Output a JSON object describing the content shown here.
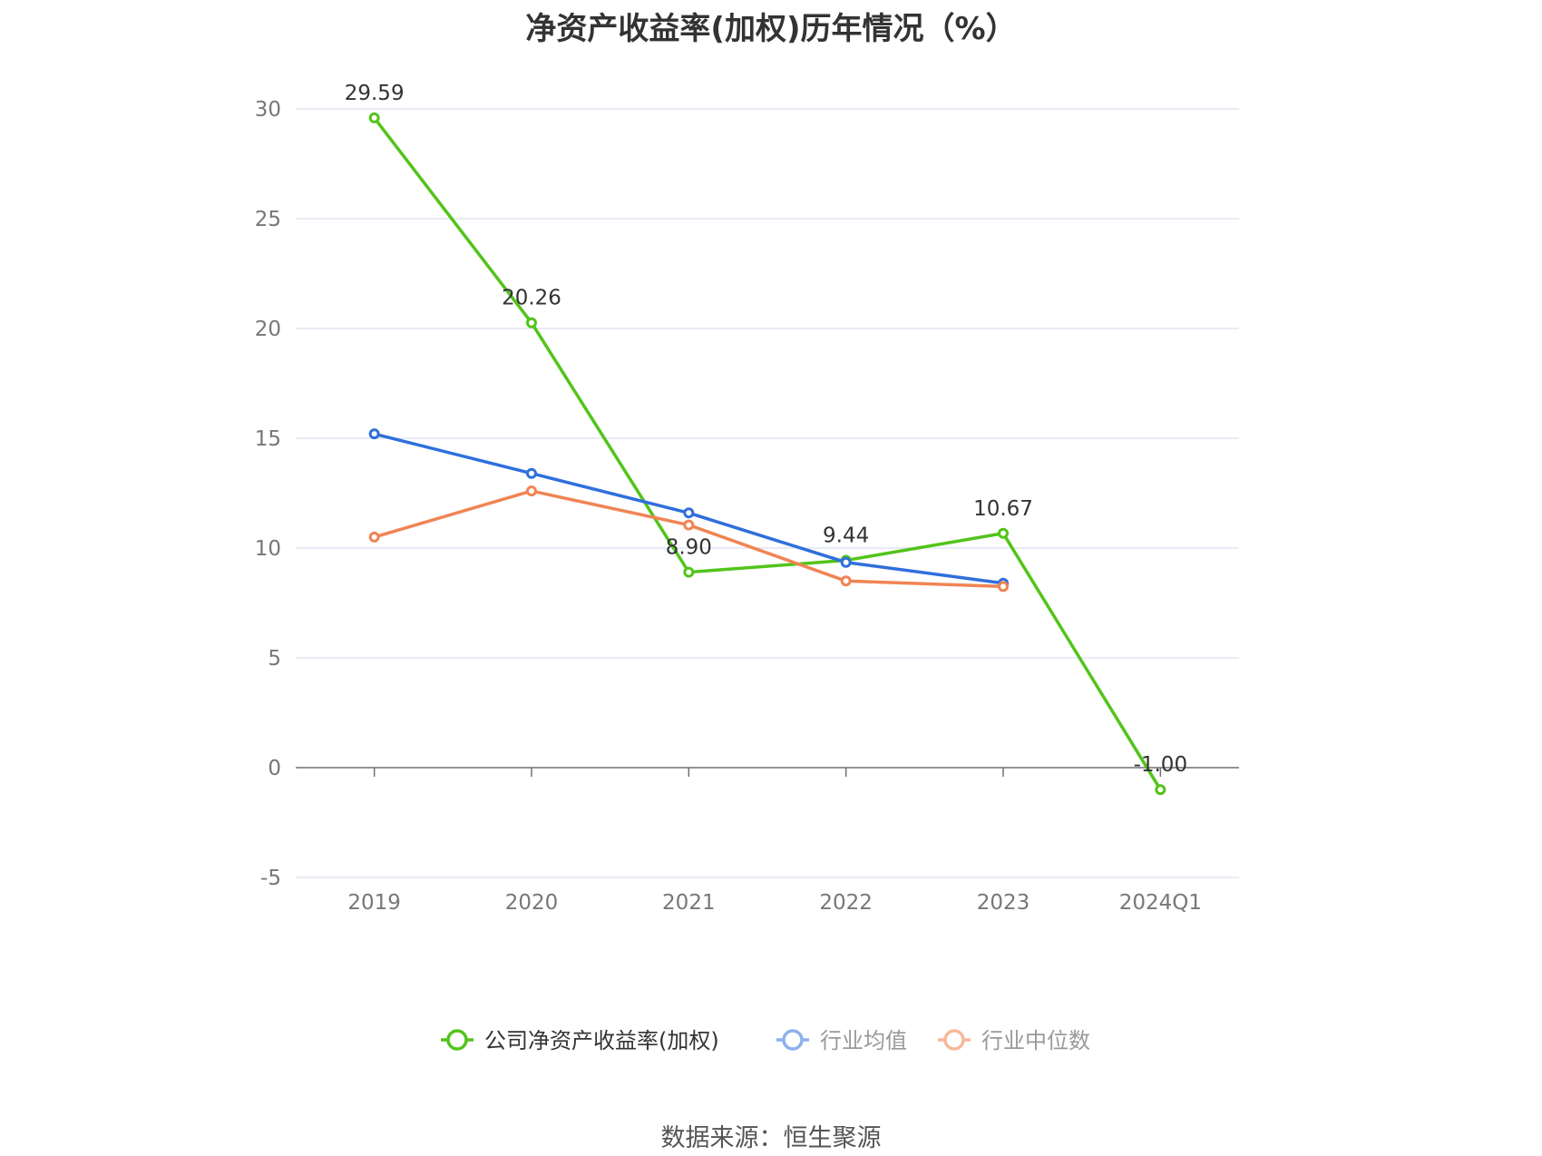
{
  "title": "净资产收益率(加权)历年情况（%）",
  "source": "数据来源：恒生聚源",
  "colors": {
    "grid": "#e0e6f1",
    "axis": "#6e7079"
  },
  "chart_data": {
    "type": "line",
    "title": "净资产收益率(加权)历年情况（%）",
    "categories": [
      "2019",
      "2020",
      "2021",
      "2022",
      "2023",
      "2024Q1"
    ],
    "y_ticks": [
      "30",
      "25",
      "20",
      "15",
      "10",
      "5",
      "0",
      "-5"
    ],
    "ylim": [
      -5,
      30
    ],
    "grid": true,
    "legend_position": "bottom",
    "series": [
      {
        "name": "公司净资产收益率(加权)",
        "color": "#52c41a",
        "values": [
          29.59,
          20.26,
          8.9,
          9.44,
          10.67,
          -1.0
        ],
        "labels": [
          "29.59",
          "20.26",
          "8.90",
          "9.44",
          "10.67",
          "-1.00"
        ]
      },
      {
        "name": "行业均值",
        "color": "#2f6fdc",
        "legend_color": "#8fb0ee",
        "values": [
          15.2,
          13.4,
          11.6,
          9.35,
          8.4,
          null
        ]
      },
      {
        "name": "行业中位数",
        "color": "#f08454",
        "legend_color": "#f7b99a",
        "values": [
          10.5,
          12.6,
          11.05,
          8.5,
          8.25,
          null
        ]
      }
    ]
  }
}
